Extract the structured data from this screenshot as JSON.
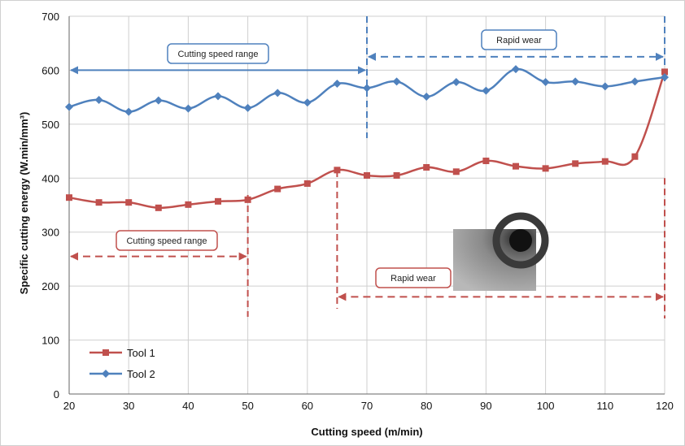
{
  "chart_data": {
    "type": "line",
    "title": "",
    "xlabel": "Cutting speed (m/min)",
    "ylabel": "Specific cutting energy (W.min/mm³)",
    "xlim": [
      20,
      120
    ],
    "ylim": [
      0,
      700
    ],
    "xticks": [
      20,
      30,
      40,
      50,
      60,
      70,
      80,
      90,
      100,
      110,
      120
    ],
    "yticks": [
      0,
      100,
      200,
      300,
      400,
      500,
      600,
      700
    ],
    "grid": true,
    "legend_position": "bottom-left",
    "series": [
      {
        "name": "Tool 1",
        "color": "#c0504d",
        "marker": "square",
        "x": [
          20,
          25,
          30,
          35,
          40,
          45,
          50,
          55,
          60,
          65,
          70,
          75,
          80,
          85,
          90,
          95,
          100,
          105,
          110,
          115,
          120
        ],
        "y": [
          364,
          355,
          355,
          345,
          351,
          357,
          360,
          380,
          390,
          415,
          405,
          405,
          420,
          412,
          432,
          422,
          418,
          427,
          431,
          440,
          597
        ]
      },
      {
        "name": "Tool 2",
        "color": "#4f81bd",
        "marker": "diamond",
        "x": [
          20,
          25,
          30,
          35,
          40,
          45,
          50,
          55,
          60,
          65,
          70,
          75,
          80,
          85,
          90,
          95,
          100,
          105,
          110,
          115,
          120
        ],
        "y": [
          532,
          545,
          523,
          544,
          529,
          552,
          530,
          558,
          540,
          575,
          567,
          579,
          551,
          578,
          562,
          602,
          578,
          579,
          570,
          579,
          587
        ]
      }
    ],
    "annotations": [
      {
        "id": "tool2_range",
        "label": "Cutting speed range",
        "color": "#4f81bd",
        "arrow_x": [
          20,
          70
        ],
        "arrow_y": 600,
        "divider_x": 70
      },
      {
        "id": "tool2_wear",
        "label": "Rapid wear",
        "color": "#4f81bd",
        "arrow_x": [
          70,
          120
        ],
        "arrow_y": 625,
        "divider_x": 120
      },
      {
        "id": "tool1_range",
        "label": "Cutting speed range",
        "color": "#c0504d",
        "arrow_x": [
          20,
          50
        ],
        "arrow_y": 255,
        "divider_x": 50
      },
      {
        "id": "tool1_wear",
        "label": "Rapid wear",
        "color": "#c0504d",
        "arrow_x": [
          65,
          120
        ],
        "arrow_y": 180,
        "divider_x": 65
      }
    ],
    "inset_image": "tool wear photo"
  }
}
